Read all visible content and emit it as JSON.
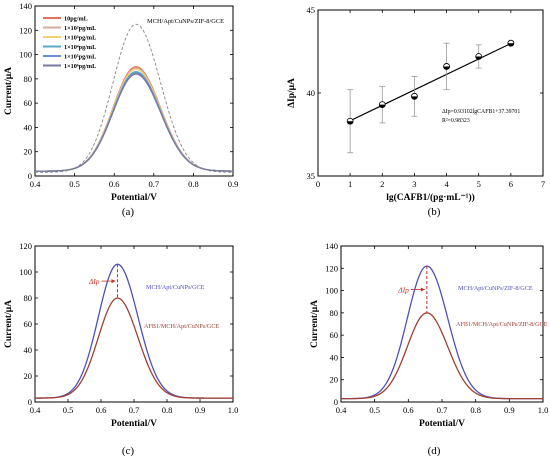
{
  "chart_data": [
    {
      "panel": "(a)",
      "type": "line",
      "xlabel": "Potential/V",
      "ylabel": "Current/μA",
      "xlim": [
        0.4,
        0.9
      ],
      "ylim": [
        0,
        140
      ],
      "xticks": [
        "0.4",
        "0.5",
        "0.6",
        "0.7",
        "0.8",
        "0.9"
      ],
      "yticks": [
        "0",
        "20",
        "40",
        "60",
        "80",
        "100",
        "120",
        "140"
      ],
      "annotations": [
        "MCH/Apt/CuNPs/ZIF-8/GCE"
      ],
      "legend_position": "top-left",
      "series": [
        {
          "name": "10pg/mL",
          "color": "#e8705a",
          "peak_x": 0.655,
          "peak_y": 90,
          "baseline": 4
        },
        {
          "name": "1×10²pg/mL",
          "color": "#d8a8a0",
          "peak_x": 0.655,
          "peak_y": 89,
          "baseline": 4
        },
        {
          "name": "1×10³pg/mL",
          "color": "#f0d070",
          "peak_x": 0.655,
          "peak_y": 88,
          "baseline": 4
        },
        {
          "name": "1×10⁴pg/mL",
          "color": "#5aa8c8",
          "peak_x": 0.655,
          "peak_y": 86,
          "baseline": 4
        },
        {
          "name": "1×10⁵pg/mL",
          "color": "#6890c8",
          "peak_x": 0.655,
          "peak_y": 85,
          "baseline": 4
        },
        {
          "name": "1×10⁶pg/mL",
          "color": "#7878a0",
          "peak_x": 0.655,
          "peak_y": 84,
          "baseline": 4
        },
        {
          "name": "MCH/Apt/CuNPs/ZIF-8/GCE",
          "color": "#888888",
          "dashed": true,
          "peak_x": 0.655,
          "peak_y": 125,
          "baseline": 3
        }
      ]
    },
    {
      "panel": "(b)",
      "type": "scatter",
      "xlabel": "lg(CAFB1/(pg·mL⁻¹))",
      "ylabel": "ΔIp/μA",
      "xlim": [
        0,
        7
      ],
      "ylim": [
        35,
        45
      ],
      "xticks": [
        "0",
        "1",
        "2",
        "3",
        "4",
        "5",
        "6",
        "7"
      ],
      "yticks": [
        "35",
        "40",
        "45"
      ],
      "points": [
        {
          "x": 1,
          "y": 38.3,
          "err": 1.9
        },
        {
          "x": 2,
          "y": 39.3,
          "err": 1.1
        },
        {
          "x": 3,
          "y": 39.8,
          "err": 1.2
        },
        {
          "x": 4,
          "y": 41.6,
          "err": 1.4
        },
        {
          "x": 5,
          "y": 42.2,
          "err": 0.7
        },
        {
          "x": 6,
          "y": 43.0,
          "err": 0.1
        }
      ],
      "fit": {
        "slope": 0.93102,
        "intercept": 37.39701
      },
      "annotations": [
        "ΔIp=0.93102lgCAFB1+37.39701",
        "R²=0.98323"
      ]
    },
    {
      "panel": "(c)",
      "type": "line",
      "xlabel": "Potential/V",
      "ylabel": "Current/μA",
      "xlim": [
        0.4,
        1.0
      ],
      "ylim": [
        0,
        120
      ],
      "xticks": [
        "0.4",
        "0.5",
        "0.6",
        "0.7",
        "0.8",
        "0.9",
        "1.0"
      ],
      "yticks": [
        "0",
        "20",
        "40",
        "60",
        "80",
        "100",
        "120"
      ],
      "annotations": [
        "ΔIp"
      ],
      "series": [
        {
          "name": "MCH/Apt/CuNPs/GCE",
          "color": "#5050c0",
          "peak_x": 0.65,
          "peak_y": 106,
          "baseline": 3
        },
        {
          "name": "AFB1/MCH/Apt/CuNPs/GCE",
          "color": "#a04030",
          "peak_x": 0.65,
          "peak_y": 80,
          "baseline": 3
        }
      ]
    },
    {
      "panel": "(d)",
      "type": "line",
      "xlabel": "Potential/V",
      "ylabel": "Current/μA",
      "xlim": [
        0.4,
        1.0
      ],
      "ylim": [
        0,
        140
      ],
      "xticks": [
        "0.4",
        "0.5",
        "0.6",
        "0.7",
        "0.8",
        "0.9",
        "1.0"
      ],
      "yticks": [
        "0",
        "20",
        "40",
        "60",
        "80",
        "100",
        "120",
        "140"
      ],
      "annotations": [
        "ΔIp"
      ],
      "series": [
        {
          "name": "MCH/Apt/CuNPs/ZIF-8/GCE",
          "color": "#5050c0",
          "peak_x": 0.655,
          "peak_y": 122,
          "baseline": 3
        },
        {
          "name": "AFB1/MCH/Apt/CuNPs/ZIF-8/GCE",
          "color": "#a04030",
          "peak_x": 0.655,
          "peak_y": 80,
          "baseline": 3
        }
      ]
    }
  ]
}
